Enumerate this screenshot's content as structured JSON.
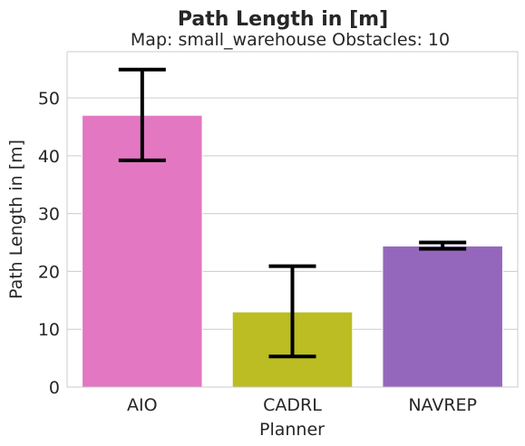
{
  "chart_data": {
    "type": "bar",
    "title": "Path Length in [m]",
    "subtitle": "Map: small_warehouse Obstacles: 10",
    "xlabel": "Planner",
    "ylabel": "Path Length in [m]",
    "categories": [
      "AIO",
      "CADRL",
      "NAVREP"
    ],
    "values": [
      47.0,
      13.0,
      24.4
    ],
    "error_low": [
      39.2,
      5.3,
      23.9
    ],
    "error_high": [
      54.9,
      20.9,
      25.0
    ],
    "colors": [
      "#e377c2",
      "#bcbd22",
      "#9467bd"
    ],
    "ylim": [
      0,
      58
    ],
    "yticks": [
      0,
      10,
      20,
      30,
      40,
      50
    ],
    "grid": "horizontal"
  }
}
